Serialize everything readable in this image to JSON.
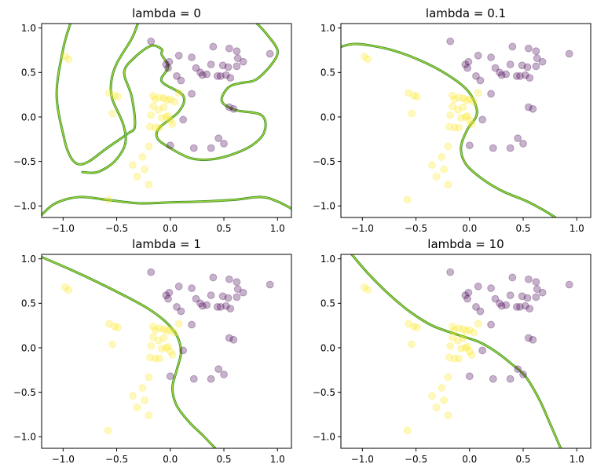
{
  "chart_data": {
    "type": "scatter",
    "xlim": [
      -1.2,
      1.13
    ],
    "ylim": [
      -1.13,
      1.05
    ],
    "xticks": [
      -1.0,
      -0.5,
      0.0,
      0.5,
      1.0
    ],
    "xtick_labels": [
      "−1.0",
      "−0.5",
      "0.0",
      "0.5",
      "1.0"
    ],
    "yticks": [
      -1.0,
      -0.5,
      0.0,
      0.5,
      1.0
    ],
    "ytick_labels": [
      "−1.0",
      "−0.5",
      "0.0",
      "0.5",
      "1.0"
    ],
    "colors": {
      "class0": "#440154",
      "class1": "#fde725",
      "boundary": "#3b8f2a",
      "boundary_highlight": "#a5d63a"
    },
    "points": {
      "class0": [
        [
          -0.18,
          0.85
        ],
        [
          -0.04,
          0.59
        ],
        [
          -0.01,
          0.62
        ],
        [
          0.08,
          0.69
        ],
        [
          0.2,
          0.67
        ],
        [
          0.4,
          0.79
        ],
        [
          0.55,
          0.77
        ],
        [
          0.62,
          0.74
        ],
        [
          0.63,
          0.66
        ],
        [
          0.68,
          0.62
        ],
        [
          0.93,
          0.71
        ],
        [
          0.38,
          0.59
        ],
        [
          0.49,
          0.58
        ],
        [
          0.54,
          0.56
        ],
        [
          0.62,
          0.57
        ],
        [
          -0.02,
          0.55
        ],
        [
          0.24,
          0.55
        ],
        [
          0.28,
          0.5
        ],
        [
          0.3,
          0.47
        ],
        [
          0.34,
          0.48
        ],
        [
          0.44,
          0.46
        ],
        [
          0.47,
          0.46
        ],
        [
          0.52,
          0.47
        ],
        [
          0.56,
          0.44
        ],
        [
          0.06,
          0.46
        ],
        [
          0.1,
          0.41
        ],
        [
          0.2,
          0.26
        ],
        [
          0.55,
          0.11
        ],
        [
          0.59,
          0.09
        ],
        [
          0.12,
          -0.03
        ],
        [
          0.0,
          -0.32
        ],
        [
          0.22,
          -0.35
        ],
        [
          0.38,
          -0.35
        ],
        [
          0.45,
          -0.24
        ],
        [
          0.5,
          -0.3
        ]
      ],
      "class1": [
        [
          -0.98,
          0.68
        ],
        [
          -0.95,
          0.65
        ],
        [
          -0.57,
          0.27
        ],
        [
          -0.52,
          0.24
        ],
        [
          -0.49,
          0.23
        ],
        [
          -0.54,
          0.04
        ],
        [
          -0.16,
          0.24
        ],
        [
          -0.14,
          0.2
        ],
        [
          -0.1,
          0.22
        ],
        [
          -0.06,
          0.21
        ],
        [
          -0.03,
          0.19
        ],
        [
          0.0,
          0.2
        ],
        [
          0.04,
          0.17
        ],
        [
          0.08,
          0.27
        ],
        [
          -0.16,
          0.12
        ],
        [
          -0.11,
          0.08
        ],
        [
          -0.06,
          0.11
        ],
        [
          -0.18,
          0.02
        ],
        [
          -0.08,
          -0.01
        ],
        [
          -0.04,
          0.0
        ],
        [
          -0.1,
          -0.12
        ],
        [
          -0.14,
          -0.12
        ],
        [
          -0.19,
          -0.11
        ],
        [
          -0.2,
          -0.33
        ],
        [
          -0.26,
          -0.45
        ],
        [
          -0.35,
          -0.54
        ],
        [
          -0.24,
          -0.59
        ],
        [
          -0.31,
          -0.67
        ],
        [
          -0.2,
          -0.76
        ],
        [
          -0.58,
          -0.93
        ],
        [
          -0.02,
          0.01
        ],
        [
          0.0,
          -0.04
        ],
        [
          0.02,
          -0.08
        ]
      ]
    },
    "panels": [
      {
        "title": "lambda = 0",
        "boundaries": [
          [
            [
              -0.93,
              1.06
            ],
            [
              -1.0,
              0.76
            ],
            [
              -1.06,
              0.25
            ],
            [
              -0.99,
              -0.24
            ],
            [
              -0.93,
              -0.45
            ],
            [
              -0.86,
              -0.53
            ],
            [
              -0.76,
              -0.5
            ],
            [
              -0.58,
              -0.34
            ],
            [
              -0.4,
              -0.19
            ],
            [
              -0.33,
              -0.1
            ],
            [
              -0.36,
              0.23
            ],
            [
              -0.43,
              0.5
            ],
            [
              -0.34,
              0.66
            ],
            [
              -0.18,
              0.8
            ],
            [
              -0.08,
              0.76
            ],
            [
              -0.08,
              0.7
            ],
            [
              -0.02,
              0.56
            ],
            [
              -0.08,
              0.4
            ],
            [
              0.12,
              0.24
            ],
            [
              0.08,
              0.06
            ],
            [
              -0.1,
              -0.12
            ],
            [
              -0.12,
              -0.24
            ],
            [
              0.0,
              -0.35
            ],
            [
              0.18,
              -0.46
            ],
            [
              0.34,
              -0.48
            ],
            [
              0.53,
              -0.44
            ],
            [
              0.76,
              -0.32
            ],
            [
              0.88,
              -0.16
            ],
            [
              0.85,
              0.02
            ],
            [
              0.6,
              0.08
            ],
            [
              0.48,
              0.18
            ],
            [
              0.54,
              0.33
            ],
            [
              0.65,
              0.38
            ],
            [
              0.8,
              0.42
            ],
            [
              0.95,
              0.6
            ],
            [
              1.0,
              0.75
            ],
            [
              0.9,
              0.93
            ],
            [
              0.8,
              1.06
            ]
          ],
          [
            [
              -0.3,
              1.06
            ],
            [
              -0.36,
              0.88
            ],
            [
              -0.5,
              0.6
            ],
            [
              -0.55,
              0.4
            ],
            [
              -0.54,
              0.2
            ],
            [
              -0.44,
              -0.08
            ],
            [
              -0.42,
              -0.3
            ],
            [
              -0.52,
              -0.5
            ],
            [
              -0.68,
              -0.62
            ],
            [
              -0.82,
              -0.62
            ]
          ],
          [
            [
              -1.2,
              -1.1
            ],
            [
              -1.07,
              -0.97
            ],
            [
              -0.85,
              -0.9
            ],
            [
              -0.6,
              -0.93
            ],
            [
              -0.3,
              -0.97
            ],
            [
              0.0,
              -0.96
            ],
            [
              0.3,
              -0.95
            ],
            [
              0.6,
              -0.93
            ],
            [
              0.85,
              -0.9
            ],
            [
              1.0,
              -0.95
            ],
            [
              1.13,
              -1.03
            ]
          ]
        ]
      },
      {
        "title": "lambda = 0.1",
        "boundaries": [
          [
            [
              -1.2,
              0.79
            ],
            [
              -1.05,
              0.82
            ],
            [
              -0.75,
              0.76
            ],
            [
              -0.45,
              0.63
            ],
            [
              -0.2,
              0.47
            ],
            [
              -0.02,
              0.3
            ],
            [
              0.06,
              0.12
            ],
            [
              0.06,
              0.0
            ],
            [
              -0.02,
              -0.14
            ],
            [
              -0.08,
              -0.34
            ],
            [
              -0.04,
              -0.52
            ],
            [
              0.1,
              -0.68
            ],
            [
              0.3,
              -0.83
            ],
            [
              0.52,
              -0.94
            ],
            [
              0.68,
              -1.04
            ],
            [
              0.8,
              -1.13
            ]
          ]
        ]
      },
      {
        "title": "lambda = 1",
        "boundaries": [
          [
            [
              -1.2,
              1.02
            ],
            [
              -0.95,
              0.89
            ],
            [
              -0.7,
              0.75
            ],
            [
              -0.45,
              0.6
            ],
            [
              -0.22,
              0.45
            ],
            [
              -0.05,
              0.3
            ],
            [
              0.06,
              0.14
            ],
            [
              0.1,
              -0.05
            ],
            [
              0.06,
              -0.25
            ],
            [
              0.02,
              -0.45
            ],
            [
              0.06,
              -0.65
            ],
            [
              0.18,
              -0.84
            ],
            [
              0.3,
              -0.98
            ],
            [
              0.42,
              -1.13
            ]
          ]
        ]
      },
      {
        "title": "lambda = 10",
        "boundaries": [
          [
            [
              -1.1,
              1.05
            ],
            [
              -0.95,
              0.84
            ],
            [
              -0.75,
              0.6
            ],
            [
              -0.55,
              0.4
            ],
            [
              -0.35,
              0.25
            ],
            [
              -0.12,
              0.15
            ],
            [
              0.08,
              0.07
            ],
            [
              0.24,
              -0.04
            ],
            [
              0.38,
              -0.17
            ],
            [
              0.52,
              -0.32
            ],
            [
              0.65,
              -0.58
            ],
            [
              0.75,
              -0.85
            ],
            [
              0.85,
              -1.13
            ]
          ]
        ]
      }
    ]
  }
}
